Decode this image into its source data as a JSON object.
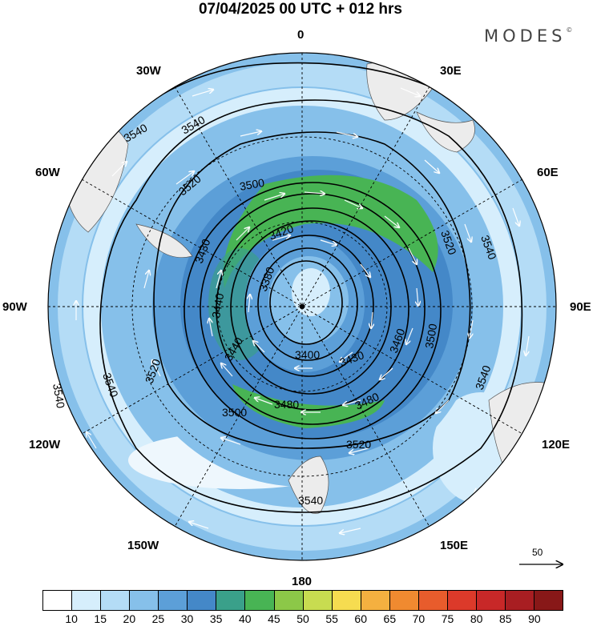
{
  "title": "07/04/2025  00 UTC  + 012 hrs",
  "brand": "MODES",
  "brand_mark": "©",
  "lon_labels": {
    "lon0": "0",
    "lon30e": "30E",
    "lon60e": "60E",
    "lon90e": "90E",
    "lon120e": "120E",
    "lon150e": "150E",
    "lon180": "180",
    "lon150w": "150W",
    "lon120w": "120W",
    "lon90w": "90W",
    "lon60w": "60W",
    "lon30w": "30W"
  },
  "contours": {
    "c3380": "3380",
    "c3400": "3400",
    "c3420": "3420",
    "c3430a": "3430",
    "c3430b": "3430",
    "c3440a": "3440",
    "c3440b": "3440",
    "c3460": "3460",
    "c3480a": "3480",
    "c3480b": "3480",
    "c3500a": "3500",
    "c3500b": "3500",
    "c3500c": "3500",
    "c3520a": "3520",
    "c3520b": "3520",
    "c3520c": "3520",
    "c3520d": "3520",
    "c3540a": "3540",
    "c3540b": "3540",
    "c3540c": "3540",
    "c3540d": "3540",
    "c3540e": "3540",
    "c3540f": "3540",
    "c3540g": "3540"
  },
  "wind_reference": "50",
  "colorbar": {
    "labels": [
      "10",
      "15",
      "20",
      "25",
      "30",
      "35",
      "40",
      "45",
      "50",
      "55",
      "60",
      "65",
      "70",
      "75",
      "80",
      "85",
      "90"
    ],
    "colors": [
      "#ffffff",
      "#d6eefc",
      "#b4dcf6",
      "#86c0ea",
      "#5c9fd8",
      "#4488c8",
      "#3aa08a",
      "#48b454",
      "#8cc848",
      "#c8dc50",
      "#f6dc50",
      "#f4b040",
      "#f08a30",
      "#e85c2c",
      "#dc3a2a",
      "#c82828",
      "#a81e22",
      "#881818"
    ]
  }
}
